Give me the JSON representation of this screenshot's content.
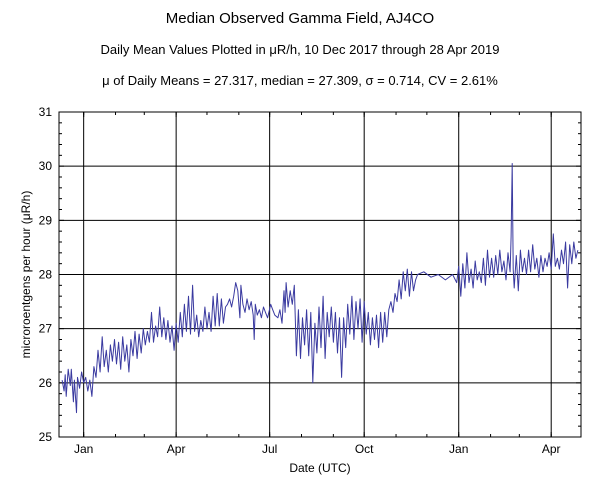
{
  "chart_data": {
    "type": "line",
    "title": "Median Observed Gamma Field, AJ4CO",
    "subtitle": "Daily Mean Values Plotted in μR/h, 10 Dec 2017 through 28 Apr 2019",
    "stats_line": "μ of Daily Means = 27.317,   median = 27.309,   σ = 0.714,   CV = 2.61%",
    "xlabel": "Date (UTC)",
    "ylabel": "microroentgens per hour (μR/h)",
    "ylim": [
      25,
      31
    ],
    "yticks": [
      "25",
      "26",
      "27",
      "28",
      "29",
      "30",
      "31"
    ],
    "xlim": [
      "2017-12-10",
      "2019-04-28"
    ],
    "xticks": [
      {
        "date": "2018-01-01",
        "label": "Jan"
      },
      {
        "date": "2018-04-01",
        "label": "Apr"
      },
      {
        "date": "2018-07-01",
        "label": "Jul"
      },
      {
        "date": "2018-10-01",
        "label": "Oct"
      },
      {
        "date": "2019-01-01",
        "label": "Jan"
      },
      {
        "date": "2019-04-01",
        "label": "Apr"
      }
    ],
    "grid": true,
    "line_color": "#3a3aa0",
    "series": [
      {
        "points": [
          [
            "2017-12-11",
            26.05
          ],
          [
            "2017-12-13",
            25.85
          ],
          [
            "2017-12-14",
            26.15
          ],
          [
            "2017-12-15",
            25.75
          ],
          [
            "2017-12-17",
            26.25
          ],
          [
            "2017-12-19",
            25.95
          ],
          [
            "2017-12-20",
            26.25
          ],
          [
            "2017-12-22",
            25.65
          ],
          [
            "2017-12-23",
            26.05
          ],
          [
            "2017-12-25",
            25.45
          ],
          [
            "2017-12-26",
            26.1
          ],
          [
            "2017-12-28",
            25.9
          ],
          [
            "2017-12-30",
            26.2
          ],
          [
            "2018-01-01",
            26.0
          ],
          [
            "2018-01-03",
            26.1
          ],
          [
            "2018-01-05",
            25.85
          ],
          [
            "2018-01-07",
            26.05
          ],
          [
            "2018-01-09",
            25.75
          ],
          [
            "2018-01-11",
            26.3
          ],
          [
            "2018-01-13",
            26.1
          ],
          [
            "2018-01-15",
            26.6
          ],
          [
            "2018-01-17",
            26.2
          ],
          [
            "2018-01-19",
            26.85
          ],
          [
            "2018-01-21",
            26.3
          ],
          [
            "2018-01-23",
            26.6
          ],
          [
            "2018-01-25",
            26.2
          ],
          [
            "2018-01-27",
            26.7
          ],
          [
            "2018-01-29",
            26.4
          ],
          [
            "2018-01-31",
            26.8
          ],
          [
            "2018-02-02",
            26.35
          ],
          [
            "2018-02-04",
            26.75
          ],
          [
            "2018-02-06",
            26.25
          ],
          [
            "2018-02-08",
            26.85
          ],
          [
            "2018-02-10",
            26.4
          ],
          [
            "2018-02-12",
            26.7
          ],
          [
            "2018-02-14",
            26.2
          ],
          [
            "2018-02-16",
            26.8
          ],
          [
            "2018-02-18",
            26.5
          ],
          [
            "2018-02-20",
            26.95
          ],
          [
            "2018-02-22",
            26.45
          ],
          [
            "2018-02-24",
            26.9
          ],
          [
            "2018-02-26",
            26.55
          ],
          [
            "2018-02-28",
            27.0
          ],
          [
            "2018-03-02",
            26.7
          ],
          [
            "2018-03-04",
            26.95
          ],
          [
            "2018-03-06",
            26.75
          ],
          [
            "2018-03-08",
            27.3
          ],
          [
            "2018-03-10",
            26.75
          ],
          [
            "2018-03-12",
            27.05
          ],
          [
            "2018-03-14",
            26.85
          ],
          [
            "2018-03-16",
            27.4
          ],
          [
            "2018-03-18",
            26.85
          ],
          [
            "2018-03-20",
            27.2
          ],
          [
            "2018-03-22",
            26.8
          ],
          [
            "2018-03-24",
            27.15
          ],
          [
            "2018-03-26",
            26.75
          ],
          [
            "2018-03-28",
            27.05
          ],
          [
            "2018-03-30",
            26.6
          ],
          [
            "2018-04-01",
            27.1
          ],
          [
            "2018-04-03",
            26.75
          ],
          [
            "2018-04-05",
            27.3
          ],
          [
            "2018-04-07",
            26.85
          ],
          [
            "2018-04-09",
            27.45
          ],
          [
            "2018-04-11",
            26.95
          ],
          [
            "2018-04-13",
            27.6
          ],
          [
            "2018-04-15",
            26.9
          ],
          [
            "2018-04-17",
            27.8
          ],
          [
            "2018-04-19",
            26.95
          ],
          [
            "2018-04-21",
            27.25
          ],
          [
            "2018-04-23",
            26.85
          ],
          [
            "2018-04-25",
            27.15
          ],
          [
            "2018-04-27",
            26.95
          ],
          [
            "2018-04-29",
            27.4
          ],
          [
            "2018-05-01",
            27.0
          ],
          [
            "2018-05-03",
            27.3
          ],
          [
            "2018-05-05",
            26.95
          ],
          [
            "2018-05-07",
            27.6
          ],
          [
            "2018-05-09",
            27.05
          ],
          [
            "2018-05-11",
            27.65
          ],
          [
            "2018-05-13",
            27.05
          ],
          [
            "2018-05-15",
            27.55
          ],
          [
            "2018-05-17",
            27.1
          ],
          [
            "2018-05-19",
            27.4
          ],
          [
            "2018-05-21",
            27.45
          ],
          [
            "2018-05-23",
            27.55
          ],
          [
            "2018-05-25",
            27.4
          ],
          [
            "2018-05-27",
            27.6
          ],
          [
            "2018-05-29",
            27.85
          ],
          [
            "2018-05-31",
            27.7
          ],
          [
            "2018-06-02",
            27.2
          ],
          [
            "2018-06-03",
            27.8
          ],
          [
            "2018-06-05",
            27.45
          ],
          [
            "2018-06-07",
            27.3
          ],
          [
            "2018-06-09",
            27.55
          ],
          [
            "2018-06-11",
            27.35
          ],
          [
            "2018-06-13",
            27.5
          ],
          [
            "2018-06-15",
            27.25
          ],
          [
            "2018-06-16",
            26.8
          ],
          [
            "2018-06-17",
            27.45
          ],
          [
            "2018-06-19",
            27.25
          ],
          [
            "2018-06-21",
            27.35
          ],
          [
            "2018-06-23",
            27.2
          ],
          [
            "2018-06-25",
            27.4
          ],
          [
            "2018-06-27",
            27.3
          ],
          [
            "2018-06-29",
            27.2
          ],
          [
            "2018-07-02",
            27.45
          ],
          [
            "2018-07-04",
            27.35
          ],
          [
            "2018-07-06",
            27.25
          ],
          [
            "2018-07-09",
            27.2
          ],
          [
            "2018-07-11",
            27.35
          ],
          [
            "2018-07-13",
            27.1
          ],
          [
            "2018-07-15",
            27.7
          ],
          [
            "2018-07-16",
            27.3
          ],
          [
            "2018-07-17",
            27.85
          ],
          [
            "2018-07-19",
            27.4
          ],
          [
            "2018-07-21",
            27.7
          ],
          [
            "2018-07-23",
            27.45
          ],
          [
            "2018-07-25",
            27.8
          ],
          [
            "2018-07-27",
            26.5
          ],
          [
            "2018-07-29",
            27.35
          ],
          [
            "2018-07-31",
            26.45
          ],
          [
            "2018-08-02",
            27.2
          ],
          [
            "2018-08-04",
            26.7
          ],
          [
            "2018-08-06",
            27.35
          ],
          [
            "2018-08-08",
            26.5
          ],
          [
            "2018-08-10",
            27.3
          ],
          [
            "2018-08-12",
            26.0
          ],
          [
            "2018-08-14",
            27.1
          ],
          [
            "2018-08-16",
            26.55
          ],
          [
            "2018-08-18",
            27.4
          ],
          [
            "2018-08-20",
            26.65
          ],
          [
            "2018-08-22",
            27.6
          ],
          [
            "2018-08-24",
            26.45
          ],
          [
            "2018-08-26",
            27.3
          ],
          [
            "2018-08-28",
            26.85
          ],
          [
            "2018-08-30",
            27.4
          ],
          [
            "2018-09-01",
            26.75
          ],
          [
            "2018-09-03",
            27.3
          ],
          [
            "2018-09-05",
            26.55
          ],
          [
            "2018-09-07",
            27.2
          ],
          [
            "2018-09-09",
            26.1
          ],
          [
            "2018-09-11",
            27.2
          ],
          [
            "2018-09-13",
            26.65
          ],
          [
            "2018-09-15",
            27.45
          ],
          [
            "2018-09-17",
            26.9
          ],
          [
            "2018-09-19",
            27.6
          ],
          [
            "2018-09-21",
            26.8
          ],
          [
            "2018-09-23",
            27.5
          ],
          [
            "2018-09-25",
            27.0
          ],
          [
            "2018-09-27",
            27.55
          ],
          [
            "2018-09-29",
            26.75
          ],
          [
            "2018-10-01",
            27.5
          ],
          [
            "2018-10-03",
            26.9
          ],
          [
            "2018-10-05",
            27.3
          ],
          [
            "2018-10-07",
            26.7
          ],
          [
            "2018-10-09",
            27.2
          ],
          [
            "2018-10-11",
            26.8
          ],
          [
            "2018-10-13",
            27.25
          ],
          [
            "2018-10-15",
            26.65
          ],
          [
            "2018-10-17",
            27.3
          ],
          [
            "2018-10-19",
            26.75
          ],
          [
            "2018-10-21",
            27.3
          ],
          [
            "2018-10-23",
            26.85
          ],
          [
            "2018-10-25",
            27.35
          ],
          [
            "2018-10-27",
            27.5
          ],
          [
            "2018-10-29",
            27.3
          ],
          [
            "2018-10-31",
            27.65
          ],
          [
            "2018-11-02",
            27.5
          ],
          [
            "2018-11-04",
            27.9
          ],
          [
            "2018-11-06",
            27.55
          ],
          [
            "2018-11-08",
            28.05
          ],
          [
            "2018-11-10",
            27.7
          ],
          [
            "2018-11-12",
            28.1
          ],
          [
            "2018-11-14",
            27.6
          ],
          [
            "2018-11-16",
            28.05
          ],
          [
            "2018-11-18",
            27.7
          ],
          [
            "2018-11-20",
            27.9
          ],
          [
            "2018-11-22",
            28.0
          ],
          [
            "2018-11-28",
            28.05
          ],
          [
            "2018-12-05",
            27.95
          ],
          [
            "2018-12-12",
            28.0
          ],
          [
            "2018-12-19",
            27.9
          ],
          [
            "2018-12-26",
            28.0
          ],
          [
            "2018-12-30",
            27.85
          ],
          [
            "2019-01-01",
            28.15
          ],
          [
            "2019-01-03",
            27.6
          ],
          [
            "2019-01-05",
            28.2
          ],
          [
            "2019-01-07",
            27.75
          ],
          [
            "2019-01-09",
            28.4
          ],
          [
            "2019-01-11",
            27.85
          ],
          [
            "2019-01-13",
            28.1
          ],
          [
            "2019-01-15",
            27.75
          ],
          [
            "2019-01-17",
            28.25
          ],
          [
            "2019-01-19",
            27.9
          ],
          [
            "2019-01-21",
            28.05
          ],
          [
            "2019-01-23",
            27.85
          ],
          [
            "2019-01-25",
            28.3
          ],
          [
            "2019-01-27",
            27.8
          ],
          [
            "2019-01-29",
            28.45
          ],
          [
            "2019-01-31",
            27.95
          ],
          [
            "2019-02-02",
            28.3
          ],
          [
            "2019-02-04",
            27.95
          ],
          [
            "2019-02-06",
            28.35
          ],
          [
            "2019-02-08",
            28.0
          ],
          [
            "2019-02-10",
            28.45
          ],
          [
            "2019-02-12",
            28.05
          ],
          [
            "2019-02-14",
            28.25
          ],
          [
            "2019-02-16",
            27.9
          ],
          [
            "2019-02-18",
            28.4
          ],
          [
            "2019-02-20",
            28.05
          ],
          [
            "2019-02-21",
            28.7
          ],
          [
            "2019-02-22",
            30.05
          ],
          [
            "2019-02-23",
            28.1
          ],
          [
            "2019-02-24",
            27.75
          ],
          [
            "2019-02-26",
            28.35
          ],
          [
            "2019-02-28",
            27.7
          ],
          [
            "2019-03-02",
            28.45
          ],
          [
            "2019-03-04",
            28.05
          ],
          [
            "2019-03-06",
            28.3
          ],
          [
            "2019-03-08",
            28.0
          ],
          [
            "2019-03-10",
            28.45
          ],
          [
            "2019-03-12",
            28.05
          ],
          [
            "2019-03-14",
            28.55
          ],
          [
            "2019-03-16",
            28.1
          ],
          [
            "2019-03-18",
            28.3
          ],
          [
            "2019-03-20",
            27.95
          ],
          [
            "2019-03-22",
            28.35
          ],
          [
            "2019-03-24",
            28.05
          ],
          [
            "2019-03-26",
            28.3
          ],
          [
            "2019-03-28",
            28.15
          ],
          [
            "2019-03-30",
            28.4
          ],
          [
            "2019-04-01",
            28.1
          ],
          [
            "2019-04-03",
            28.75
          ],
          [
            "2019-04-05",
            28.15
          ],
          [
            "2019-04-07",
            28.3
          ],
          [
            "2019-04-09",
            28.1
          ],
          [
            "2019-04-11",
            28.45
          ],
          [
            "2019-04-13",
            28.2
          ],
          [
            "2019-04-15",
            28.6
          ],
          [
            "2019-04-17",
            27.75
          ],
          [
            "2019-04-19",
            28.55
          ],
          [
            "2019-04-21",
            28.2
          ],
          [
            "2019-04-23",
            28.6
          ],
          [
            "2019-04-25",
            28.3
          ],
          [
            "2019-04-27",
            28.45
          ]
        ]
      }
    ]
  }
}
